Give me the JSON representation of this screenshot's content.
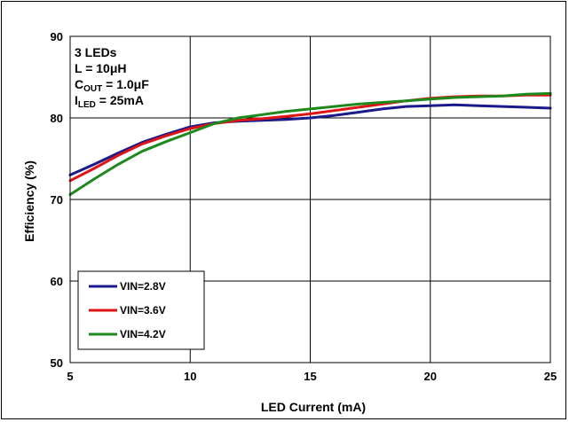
{
  "chart_data": {
    "type": "line",
    "title": "",
    "xlabel": "LED Current (mA)",
    "ylabel": "Efficiency (%)",
    "xlim": [
      5,
      25
    ],
    "ylim": [
      50,
      90
    ],
    "xticks": [
      5,
      10,
      15,
      20,
      25
    ],
    "yticks": [
      50,
      60,
      70,
      80,
      90
    ],
    "grid": true,
    "legend_position": "lower-left",
    "annotation": {
      "line1": "3 LEDs",
      "line2": "L = 10μH",
      "line3_main": "C",
      "line3_sub": "OUT",
      "line3_rest": " = 1.0μF",
      "line4_main": "I",
      "line4_sub": "LED",
      "line4_rest": " = 25mA"
    },
    "series": [
      {
        "name": "VIN=2.8V",
        "color": "#1a1a8c",
        "x": [
          5,
          6,
          7,
          8,
          9,
          10,
          11,
          12,
          13,
          14,
          15,
          16,
          17,
          18,
          19,
          20,
          21,
          22,
          23,
          24,
          25
        ],
        "y": [
          73.0,
          74.3,
          75.7,
          77.0,
          78.0,
          78.9,
          79.4,
          79.6,
          79.7,
          79.8,
          80.0,
          80.3,
          80.7,
          81.1,
          81.4,
          81.5,
          81.6,
          81.5,
          81.4,
          81.3,
          81.2
        ]
      },
      {
        "name": "VIN=3.6V",
        "color": "#e01414",
        "x": [
          5,
          6,
          7,
          8,
          9,
          10,
          11,
          12,
          13,
          14,
          15,
          16,
          17,
          18,
          19,
          20,
          21,
          22,
          23,
          24,
          25
        ],
        "y": [
          72.3,
          73.8,
          75.4,
          76.8,
          77.8,
          78.7,
          79.3,
          79.7,
          79.9,
          80.2,
          80.5,
          80.9,
          81.3,
          81.7,
          82.1,
          82.4,
          82.6,
          82.7,
          82.7,
          82.8,
          82.8
        ]
      },
      {
        "name": "VIN=4.2V",
        "color": "#1e8a1e",
        "x": [
          5,
          6,
          7,
          8,
          9,
          10,
          11,
          12,
          13,
          14,
          15,
          16,
          17,
          18,
          19,
          20,
          21,
          22,
          23,
          24,
          25
        ],
        "y": [
          70.6,
          72.5,
          74.3,
          75.9,
          77.1,
          78.2,
          79.3,
          80.0,
          80.4,
          80.8,
          81.1,
          81.4,
          81.7,
          81.9,
          82.1,
          82.3,
          82.5,
          82.6,
          82.7,
          82.9,
          83.0
        ]
      }
    ]
  }
}
